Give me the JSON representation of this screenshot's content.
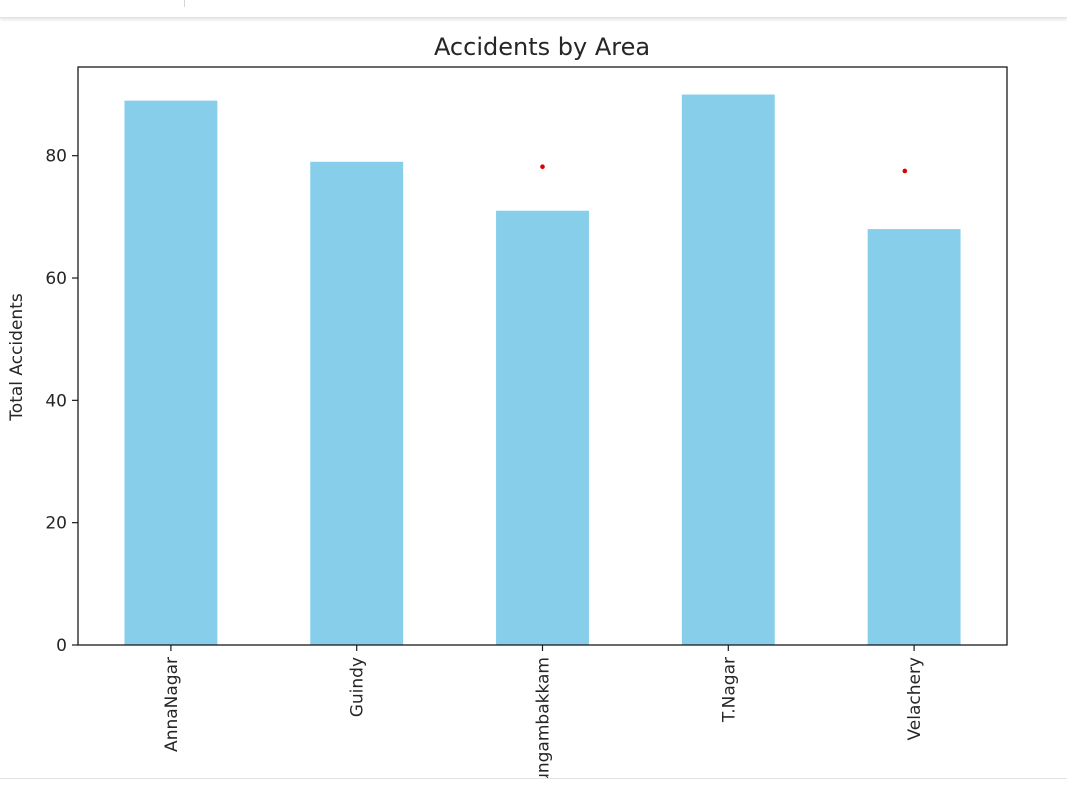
{
  "chart_data": {
    "type": "bar",
    "title": "Accidents by Area",
    "xlabel": "",
    "ylabel": "Total Accidents",
    "categories": [
      "AnnaNagar",
      "Guindy",
      "Nungambakkam",
      "T.Nagar",
      "Velachery"
    ],
    "values": [
      89,
      79,
      71,
      90,
      68
    ],
    "ylim": [
      0,
      94.5
    ],
    "yticks": [
      0,
      20,
      40,
      60,
      80
    ],
    "bar_color": "#87ceeb",
    "grid": false,
    "legend": "none",
    "markers": [
      {
        "x": 2.5,
        "y": 78.2,
        "color": "#dd0000"
      },
      {
        "x": 4.45,
        "y": 77.5,
        "color": "#dd0000"
      }
    ]
  }
}
